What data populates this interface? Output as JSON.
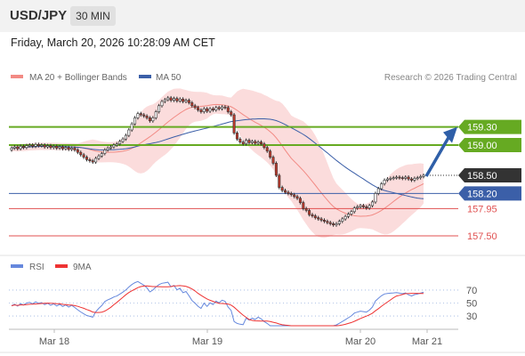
{
  "header": {
    "symbol": "USD/JPY",
    "timeframe": "30 MIN",
    "timestamp": "Friday, March 20, 2026 10:28:09 AM CET"
  },
  "legend": {
    "items": [
      {
        "label": "MA 20 + Bollinger Bands",
        "color": "#f28a84"
      },
      {
        "label": "MA 50",
        "color": "#3b5fa8"
      }
    ],
    "copyright": "Research © 2026 Trading Central"
  },
  "colors": {
    "up_candle": "#ffffff",
    "down_candle": "#c0392b",
    "bollinger_fill": "#fbdcdc",
    "ma20": "#f28a84",
    "ma50": "#3b5fa8",
    "resistance": "#66aa22",
    "support": "#3b5fa8",
    "target": "#e05050",
    "current": "#333333",
    "arrow": "#2f5fa8",
    "rsi": "#6688dd",
    "rsi_ma": "#ee3333"
  },
  "chart_data": [
    {
      "type": "candlestick",
      "y_range": [
        157.25,
        160.0
      ],
      "x_labels": [
        "Mar 18",
        "Mar 19",
        "Mar 20",
        "Mar 21"
      ],
      "levels": [
        {
          "value": 159.3,
          "label": "159.30",
          "kind": "resistance"
        },
        {
          "value": 159.0,
          "label": "159.00",
          "kind": "resistance"
        },
        {
          "value": 158.5,
          "label": "158.50",
          "kind": "current"
        },
        {
          "value": 158.2,
          "label": "158.20",
          "kind": "support"
        },
        {
          "value": 157.95,
          "label": "157.95",
          "kind": "target"
        },
        {
          "value": 157.5,
          "label": "157.50",
          "kind": "target"
        }
      ],
      "close": [
        158.95,
        158.97,
        158.94,
        158.98,
        158.96,
        158.99,
        159.0,
        158.98,
        159.01,
        158.99,
        159.0,
        158.97,
        158.99,
        158.96,
        158.98,
        158.95,
        158.97,
        158.94,
        158.96,
        158.93,
        158.95,
        158.92,
        158.88,
        158.84,
        158.8,
        158.76,
        158.74,
        158.72,
        158.78,
        158.82,
        158.86,
        158.92,
        158.95,
        158.97,
        159.0,
        159.02,
        159.06,
        159.1,
        159.16,
        159.25,
        159.35,
        159.45,
        159.52,
        159.5,
        159.48,
        159.45,
        159.4,
        159.45,
        159.55,
        159.65,
        159.72,
        159.75,
        159.78,
        159.74,
        159.77,
        159.73,
        159.76,
        159.72,
        159.74,
        159.7,
        159.65,
        159.62,
        159.58,
        159.55,
        159.6,
        159.56,
        159.6,
        159.58,
        159.62,
        159.6,
        159.63,
        159.62,
        159.55,
        159.5,
        159.2,
        159.1,
        159.05,
        159.02,
        159.08,
        159.04,
        159.06,
        159.03,
        159.05,
        159.02,
        158.96,
        158.9,
        158.8,
        158.7,
        158.5,
        158.3,
        158.25,
        158.22,
        158.2,
        158.18,
        158.15,
        158.12,
        158.05,
        157.95,
        157.92,
        157.85,
        157.83,
        157.8,
        157.78,
        157.76,
        157.74,
        157.72,
        157.7,
        157.68,
        157.7,
        157.74,
        157.78,
        157.82,
        157.86,
        157.9,
        157.96,
        157.98,
        158.0,
        157.98,
        157.96,
        158.0,
        158.06,
        158.2,
        158.28,
        158.36,
        158.42,
        158.44,
        158.45,
        158.46,
        158.47,
        158.46,
        158.45,
        158.47,
        158.44,
        158.42,
        158.45,
        158.46,
        158.48,
        158.5
      ]
    },
    {
      "type": "line",
      "y_range": [
        15,
        85
      ],
      "y_ticks": [
        70,
        50,
        30
      ],
      "series": [
        {
          "name": "RSI",
          "values": [
            45.9,
            48.2,
            45.3,
            49.0,
            47.0,
            50.0,
            50.9,
            48.9,
            51.8,
            49.7,
            50.7,
            47.5,
            49.7,
            46.4,
            48.7,
            45.5,
            47.9,
            44.6,
            47.1,
            43.8,
            46.4,
            43.2,
            39.6,
            36.3,
            33.4,
            30.8,
            29.5,
            28.2,
            36.6,
            41.7,
            46.2,
            52.3,
            55.0,
            56.8,
            59.3,
            60.9,
            63.9,
            66.7,
            70.2,
            74.7,
            78.5,
            81.5,
            83.2,
            80.4,
            77.6,
            73.5,
            67.2,
            70.0,
            74.7,
            78.4,
            80.5,
            81.3,
            82.1,
            75.1,
            77.2,
            70.3,
            72.8,
            65.9,
            67.9,
            61.2,
            53.9,
            49.9,
            45.0,
            41.7,
            49.8,
            44.8,
            50.3,
            47.6,
            53.0,
            50.3,
            54.4,
            52.8,
            43.8,
            38.7,
            21.5,
            18.5,
            17.3,
            16.7,
            26.6,
            23.8,
            26.6,
            24.6,
            28.3,
            25.6,
            21.4,
            18.5,
            15.0,
            15.0,
            15.0,
            15.0,
            15.0,
            15.0,
            15.0,
            15.0,
            15.0,
            15.0,
            15.0,
            15.0,
            15.0,
            15.0,
            15.0,
            15.0,
            15.0,
            15.0,
            15.0,
            15.0,
            15.0,
            15.0,
            16.3,
            18.9,
            21.6,
            24.4,
            27.4,
            30.3,
            34.6,
            36.0,
            37.5,
            36.8,
            36.0,
            39.2,
            43.8,
            53.1,
            57.4,
            61.3,
            64.0,
            64.8,
            65.3,
            65.7,
            66.2,
            65.3,
            64.4,
            65.5,
            62.7,
            60.9,
            63.0,
            63.8,
            65.2,
            66.6
          ]
        },
        {
          "name": "9MA",
          "values": [
            45.9,
            47.1,
            46.5,
            47.1,
            47.1,
            47.6,
            48.1,
            48.2,
            48.6,
            48.9,
            49.3,
            49.7,
            49.9,
            49.6,
            49.5,
            49.0,
            48.9,
            47.9,
            47.7,
            47.0,
            46.8,
            46.0,
            44.9,
            43.4,
            41.9,
            40.0,
            38.3,
            36.2,
            35.4,
            35.4,
            35.9,
            37.6,
            40.2,
            43.4,
            47.4,
            51.0,
            54.9,
            58.8,
            62.7,
            66.2,
            68.9,
            71.3,
            73.8,
            75.4,
            76.2,
            76.3,
            75.9,
            75.4,
            75.4,
            75.3,
            75.1,
            75.0,
            75.0,
            75.4,
            76.5,
            76.6,
            76.9,
            76.3,
            75.7,
            74.0,
            71.7,
            68.7,
            64.9,
            61.9,
            59.0,
            56.3,
            54.2,
            52.6,
            50.9,
            49.5,
            49.3,
            49.1,
            48.5,
            46.8,
            43.5,
            39.4,
            35.2,
            31.4,
            28.0,
            24.6,
            23.3,
            22.6,
            22.4,
            22.1,
            22.1,
            22.3,
            21.5,
            20.4,
            19.3,
            17.8,
            16.5,
            15.9,
            15.5,
            15.0,
            15.0,
            15.0,
            15.0,
            15.0,
            15.0,
            15.0,
            15.0,
            15.0,
            15.0,
            15.0,
            15.0,
            15.0,
            15.0,
            15.0,
            15.0,
            15.4,
            16.2,
            17.2,
            18.5,
            20.0,
            21.9,
            23.9,
            26.1,
            28.1,
            29.8,
            31.9,
            34.4,
            38.1,
            41.4,
            45.0,
            48.5,
            51.5,
            54.8,
            58.1,
            60.8,
            62.0,
            63.2,
            64.6,
            64.7,
            64.9,
            64.9,
            64.9,
            64.8,
            64.8
          ]
        }
      ]
    }
  ]
}
